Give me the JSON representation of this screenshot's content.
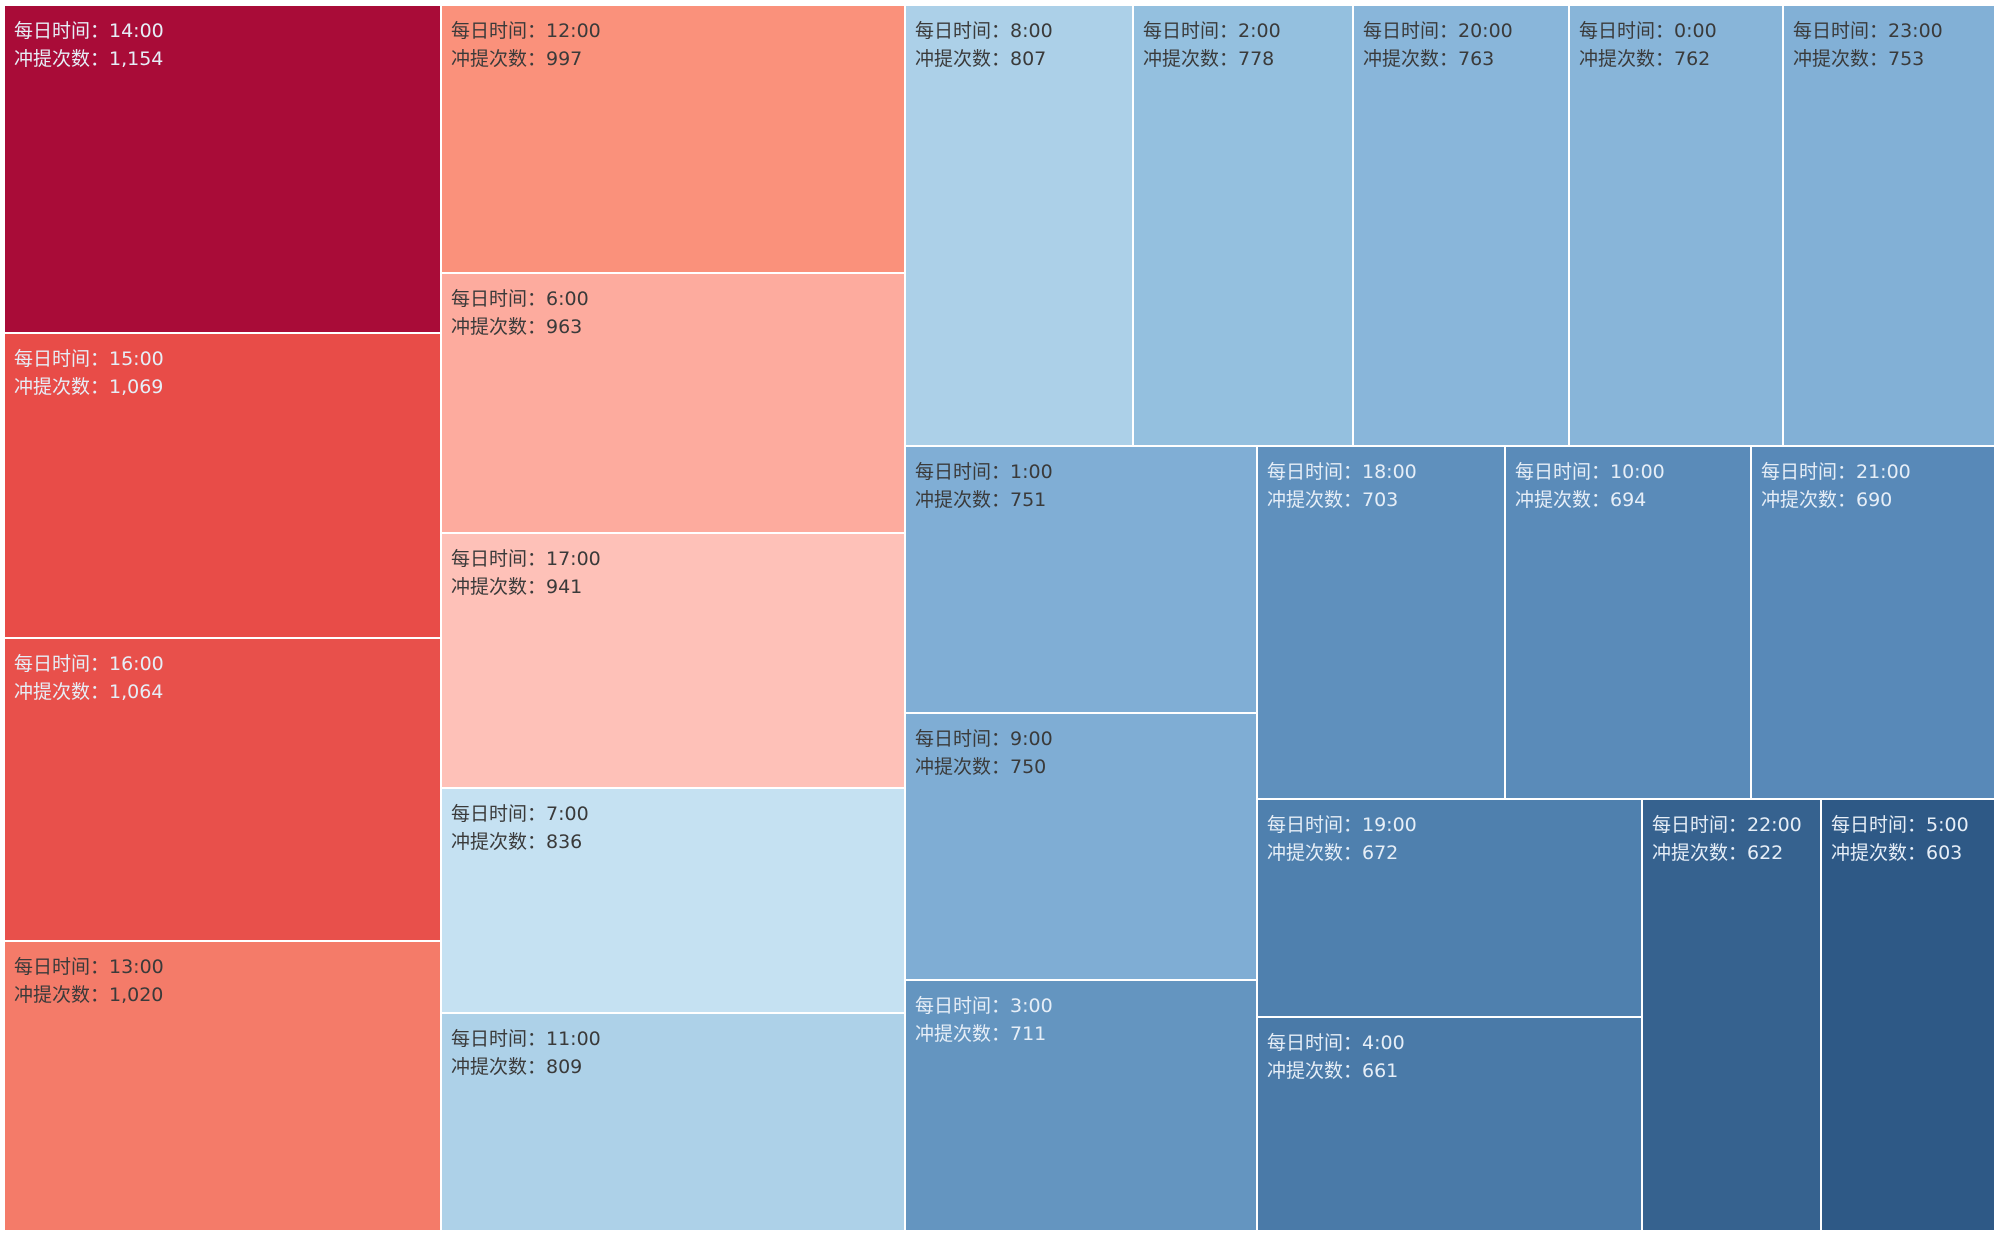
{
  "chart_data": {
    "type": "treemap",
    "title": "",
    "label_prefix_time": "每日时间：",
    "label_prefix_count": "冲提次数：",
    "color_scale": {
      "type": "diverging",
      "low": "#2e5a87",
      "mid": "#f7f7f7",
      "high": "#a90c38"
    },
    "items": [
      {
        "time": "14:00",
        "count": 1154,
        "count_label": "1,154",
        "color": "#a90c38",
        "text": "light"
      },
      {
        "time": "15:00",
        "count": 1069,
        "count_label": "1,069",
        "color": "#e84c48",
        "text": "light"
      },
      {
        "time": "16:00",
        "count": 1064,
        "count_label": "1,064",
        "color": "#e8504b",
        "text": "light"
      },
      {
        "time": "13:00",
        "count": 1020,
        "count_label": "1,020",
        "color": "#f47b69",
        "text": "dark"
      },
      {
        "time": "12:00",
        "count": 997,
        "count_label": "997",
        "color": "#fa917b",
        "text": "dark"
      },
      {
        "time": "6:00",
        "count": 963,
        "count_label": "963",
        "color": "#fdab9e",
        "text": "dark"
      },
      {
        "time": "17:00",
        "count": 941,
        "count_label": "941",
        "color": "#fec1b8",
        "text": "dark"
      },
      {
        "time": "7:00",
        "count": 836,
        "count_label": "836",
        "color": "#c5e1f2",
        "text": "dark"
      },
      {
        "time": "11:00",
        "count": 809,
        "count_label": "809",
        "color": "#add1e8",
        "text": "dark"
      },
      {
        "time": "8:00",
        "count": 807,
        "count_label": "807",
        "color": "#acd0e8",
        "text": "dark"
      },
      {
        "time": "2:00",
        "count": 778,
        "count_label": "778",
        "color": "#94c0df",
        "text": "dark"
      },
      {
        "time": "20:00",
        "count": 763,
        "count_label": "763",
        "color": "#89b6da",
        "text": "dark"
      },
      {
        "time": "0:00",
        "count": 762,
        "count_label": "762",
        "color": "#88b5d9",
        "text": "dark"
      },
      {
        "time": "23:00",
        "count": 753,
        "count_label": "753",
        "color": "#82b0d6",
        "text": "dark"
      },
      {
        "time": "1:00",
        "count": 751,
        "count_label": "751",
        "color": "#80aed5",
        "text": "dark"
      },
      {
        "time": "9:00",
        "count": 750,
        "count_label": "750",
        "color": "#7fadd4",
        "text": "dark"
      },
      {
        "time": "3:00",
        "count": 711,
        "count_label": "711",
        "color": "#6495c0",
        "text": "light"
      },
      {
        "time": "18:00",
        "count": 703,
        "count_label": "703",
        "color": "#5f90bd",
        "text": "light"
      },
      {
        "time": "10:00",
        "count": 694,
        "count_label": "694",
        "color": "#5a8bb9",
        "text": "light"
      },
      {
        "time": "21:00",
        "count": 690,
        "count_label": "690",
        "color": "#5889b8",
        "text": "light"
      },
      {
        "time": "19:00",
        "count": 672,
        "count_label": "672",
        "color": "#4f80ae",
        "text": "light"
      },
      {
        "time": "4:00",
        "count": 661,
        "count_label": "661",
        "color": "#4a7aa8",
        "text": "light"
      },
      {
        "time": "22:00",
        "count": 622,
        "count_label": "622",
        "color": "#36628f",
        "text": "light"
      },
      {
        "time": "5:00",
        "count": 603,
        "count_label": "603",
        "color": "#2e5986",
        "text": "light"
      }
    ]
  }
}
